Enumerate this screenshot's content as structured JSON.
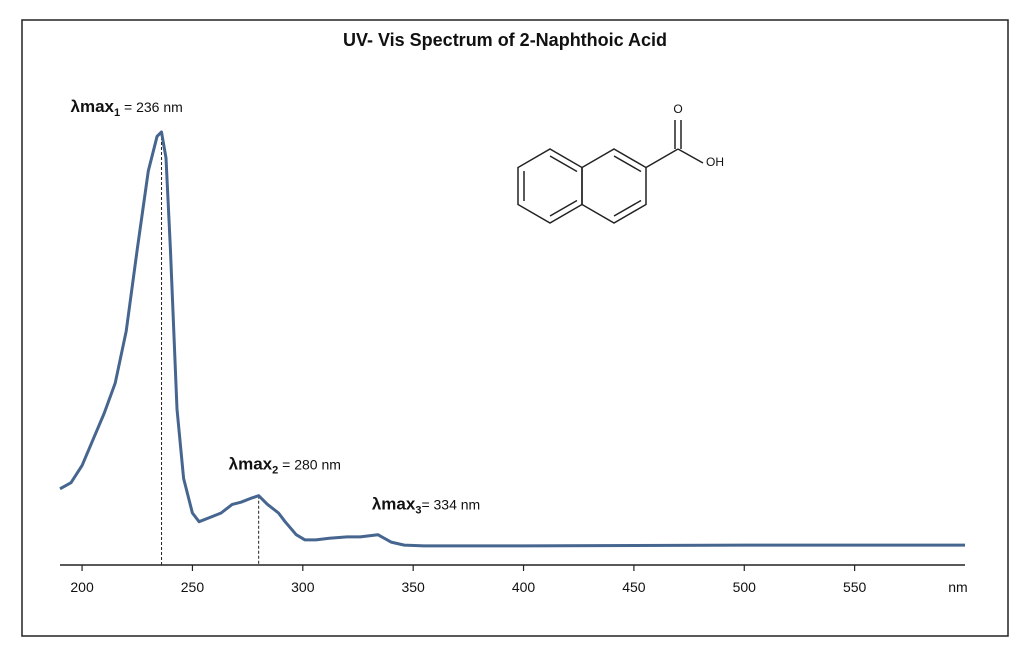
{
  "chart_data": {
    "type": "line",
    "title": "UV- Vis Spectrum of 2-Naphthoic Acid",
    "x_label": "nm",
    "x": [
      190,
      195,
      200,
      205,
      210,
      215,
      220,
      225,
      230,
      234,
      236,
      238,
      240,
      243,
      246,
      250,
      253,
      258,
      263,
      268,
      272,
      277,
      280,
      284,
      289,
      292,
      297,
      301,
      306,
      312,
      320,
      326,
      334,
      340,
      346,
      355,
      400,
      500,
      600
    ],
    "series": [
      {
        "color": "#46668f",
        "values": [
          0.176,
          0.19,
          0.23,
          0.29,
          0.35,
          0.42,
          0.54,
          0.73,
          0.91,
          0.99,
          1.0,
          0.94,
          0.73,
          0.36,
          0.2,
          0.12,
          0.1,
          0.11,
          0.12,
          0.14,
          0.145,
          0.155,
          0.16,
          0.14,
          0.12,
          0.1,
          0.07,
          0.058,
          0.058,
          0.062,
          0.065,
          0.065,
          0.07,
          0.053,
          0.046,
          0.044,
          0.044,
          0.046,
          0.046
        ]
      }
    ],
    "xlim": [
      190,
      600
    ],
    "xticks": [
      200,
      250,
      300,
      350,
      400,
      450,
      500,
      550
    ],
    "ylim": [
      0,
      1
    ],
    "annotations": [
      {
        "x": 236,
        "y": 1.0,
        "symbol": "λmax",
        "subscript": "1",
        "text": " = 236 nm",
        "dashed": true
      },
      {
        "x": 280,
        "y": 0.16,
        "symbol": "λmax",
        "subscript": "2",
        "text": " = 280 nm",
        "dashed": true
      },
      {
        "x": 334,
        "y": 0.07,
        "symbol": "λmax",
        "subscript": "3",
        "text": "= 334 nm",
        "dashed": false
      }
    ]
  },
  "structure": {
    "atoms": [
      "O",
      "OH"
    ]
  }
}
